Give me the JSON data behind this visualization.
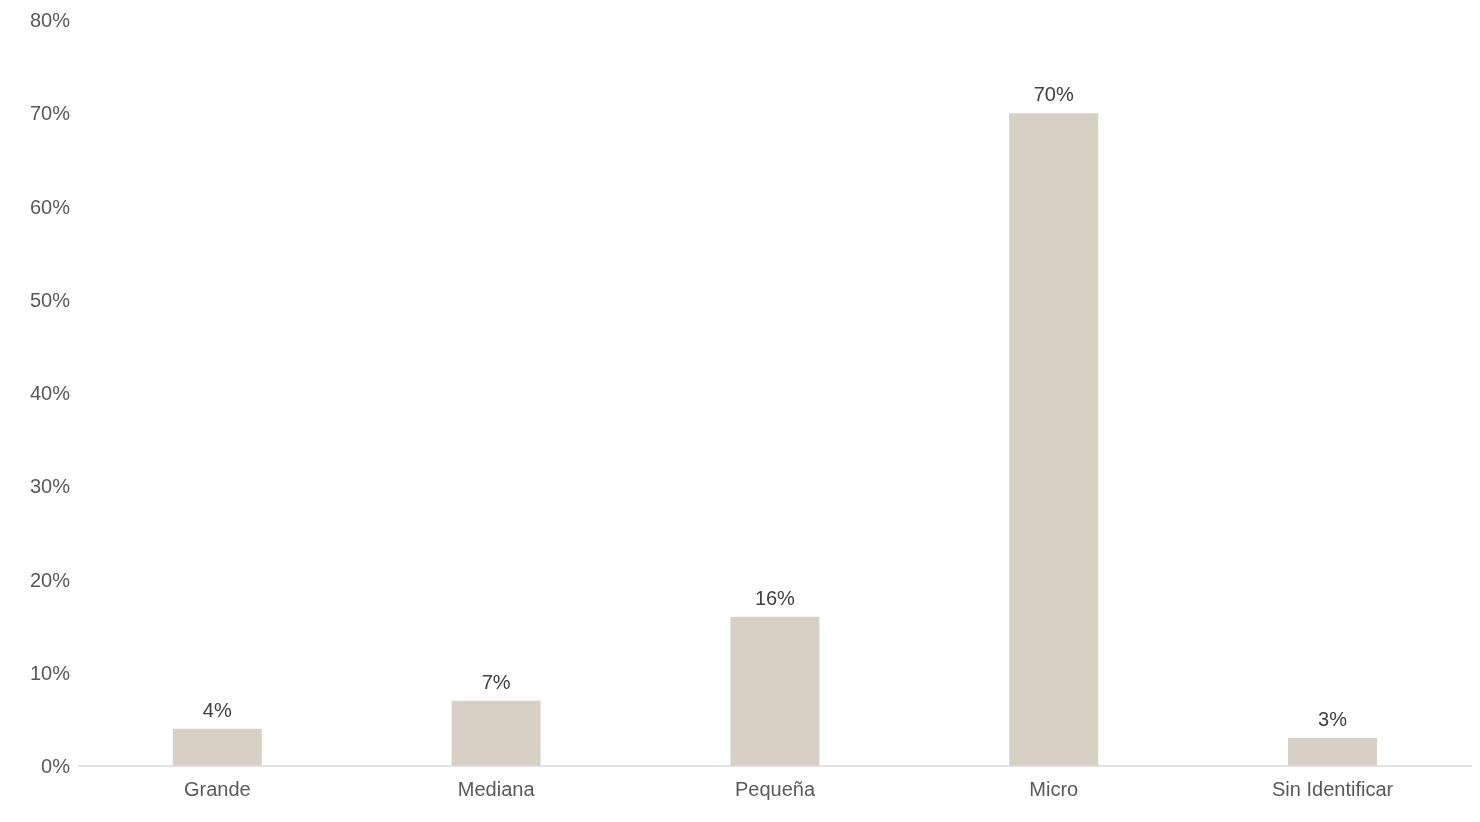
{
  "chart_data": {
    "type": "bar",
    "categories": [
      "Grande",
      "Mediana",
      "Pequeña",
      "Micro",
      "Sin Identificar"
    ],
    "values": [
      4,
      7,
      16,
      70,
      3
    ],
    "value_labels": [
      "4%",
      "7%",
      "16%",
      "70%",
      "3%"
    ],
    "color": "#d6d1c4",
    "ylim": [
      0,
      80
    ],
    "yticks": [
      {
        "value": 0,
        "label": "0%"
      },
      {
        "value": 10,
        "label": "10%"
      },
      {
        "value": 20,
        "label": "20%"
      },
      {
        "value": 30,
        "label": "30%"
      },
      {
        "value": 40,
        "label": "40%"
      },
      {
        "value": 50,
        "label": "50%"
      },
      {
        "value": 60,
        "label": "60%"
      },
      {
        "value": 70,
        "label": "70%"
      },
      {
        "value": 80,
        "label": "80%"
      }
    ],
    "grid": false,
    "legend": false
  }
}
